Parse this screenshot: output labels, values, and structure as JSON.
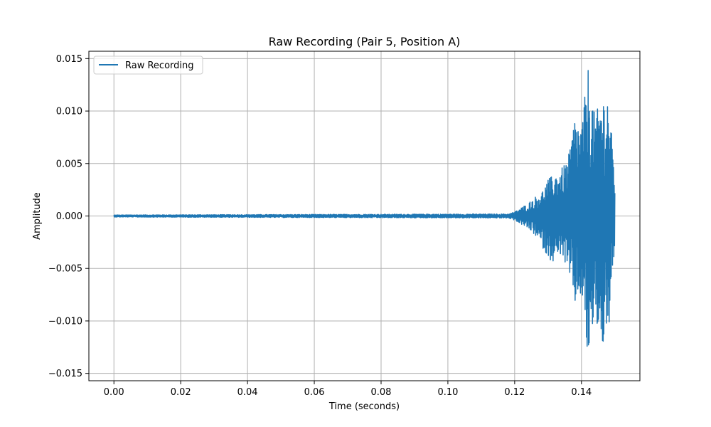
{
  "chart_data": {
    "type": "line",
    "title": "Raw Recording (Pair 5, Position A)",
    "xlabel": "Time (seconds)",
    "ylabel": "Amplitude",
    "xlim": [
      -0.0075,
      0.1575
    ],
    "ylim": [
      -0.0157,
      0.0157
    ],
    "xticks": [
      0.0,
      0.02,
      0.04,
      0.06,
      0.08,
      0.1,
      0.12,
      0.14
    ],
    "xtick_labels": [
      "0.00",
      "0.02",
      "0.04",
      "0.06",
      "0.08",
      "0.10",
      "0.12",
      "0.14"
    ],
    "yticks": [
      -0.015,
      -0.01,
      -0.005,
      0.0,
      0.005,
      0.01,
      0.015
    ],
    "ytick_labels": [
      "−0.015",
      "−0.010",
      "−0.005",
      "0.000",
      "0.005",
      "0.010",
      "0.015"
    ],
    "grid": true,
    "legend_position": "top-left",
    "series": [
      {
        "name": "Raw Recording",
        "color": "#1f77b4",
        "x_start": 0.0,
        "x_end": 0.15,
        "x": [
          0.0,
          0.118,
          0.12,
          0.122,
          0.124,
          0.126,
          0.128,
          0.13,
          0.132,
          0.134,
          0.136,
          0.138,
          0.14,
          0.142,
          0.144,
          0.146,
          0.148,
          0.15
        ],
        "envelope_max": [
          0.0001,
          0.0002,
          0.0004,
          0.0008,
          0.0012,
          0.0018,
          0.0022,
          0.0035,
          0.004,
          0.0045,
          0.0055,
          0.0095,
          0.0085,
          0.0142,
          0.0095,
          0.0113,
          0.0118,
          0.004
        ],
        "envelope_min": [
          -0.0001,
          -0.0002,
          -0.0004,
          -0.0008,
          -0.0012,
          -0.0018,
          -0.0028,
          -0.004,
          -0.0045,
          -0.0035,
          -0.0055,
          -0.0085,
          -0.0075,
          -0.0142,
          -0.0095,
          -0.0128,
          -0.0115,
          -0.0045
        ]
      }
    ]
  }
}
